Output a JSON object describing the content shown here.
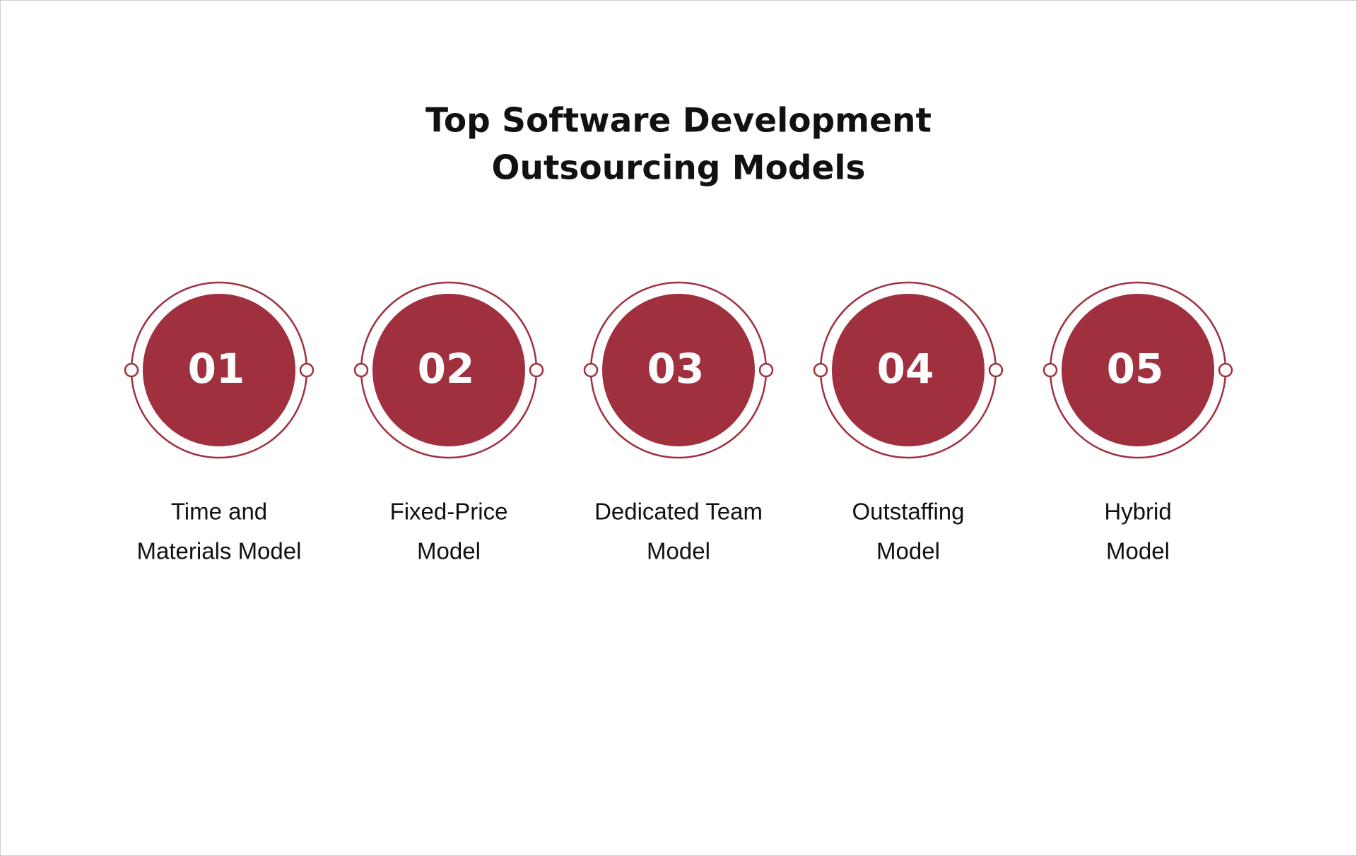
{
  "title": {
    "lines": [
      "Top Software Development",
      "Outsourcing Models"
    ]
  },
  "items": [
    {
      "number": "01",
      "label": [
        "Time and",
        "Materials Model"
      ]
    },
    {
      "number": "02",
      "label": [
        "Fixed-Price",
        "Model"
      ]
    },
    {
      "number": "03",
      "label": [
        "Dedicated Team",
        "Model"
      ]
    },
    {
      "number": "04",
      "label": [
        "Outstaffing",
        "Model"
      ]
    },
    {
      "number": "05",
      "label": [
        "Hybrid",
        "Model"
      ]
    }
  ]
}
